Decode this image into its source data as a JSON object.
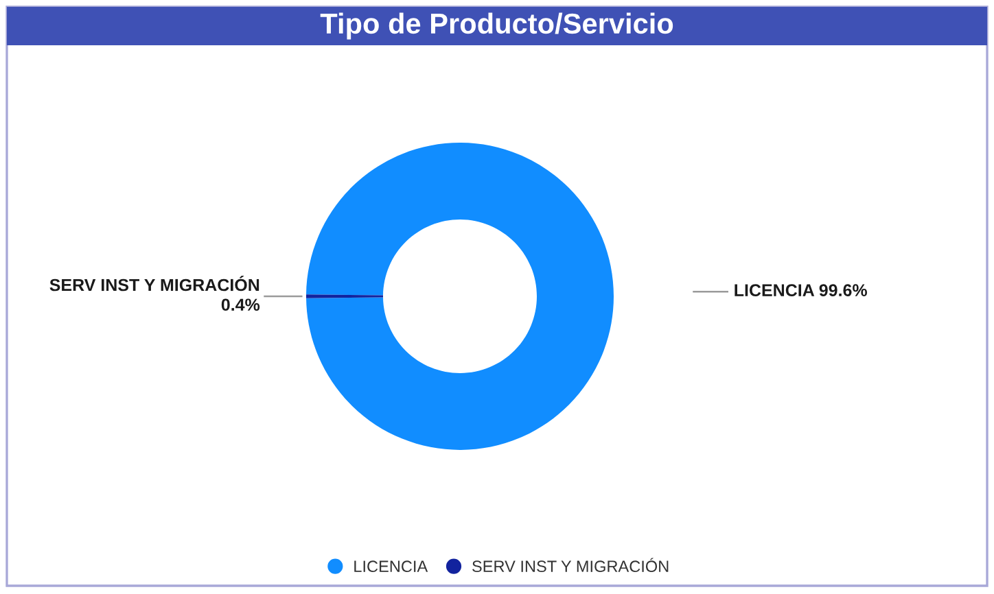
{
  "chart_data": {
    "type": "donut",
    "title": "Tipo de Producto/Servicio",
    "categories": [
      "LICENCIA",
      "SERV INST Y MIGRACIÓN"
    ],
    "values": [
      99.6,
      0.4
    ],
    "colors": [
      "#118dff",
      "#12239e"
    ],
    "value_labels": [
      "99.6%",
      "0.4%"
    ],
    "legend": "bottom"
  }
}
